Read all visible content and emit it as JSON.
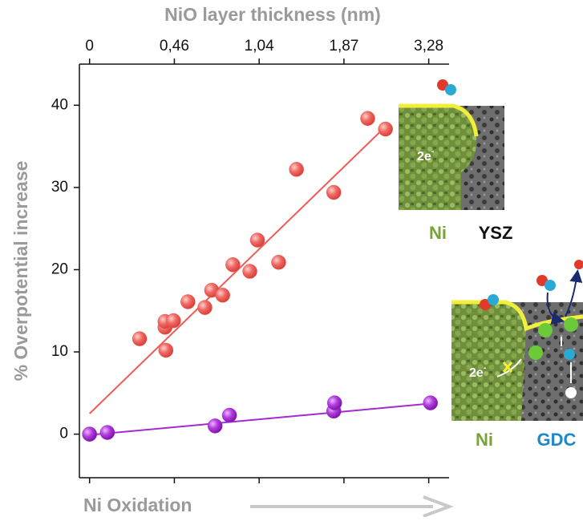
{
  "chart_data": {
    "type": "scatter",
    "top_axis_label": "NiO layer thickness (nm)",
    "ylabel": "% Overpotential increase",
    "xlabel": "Ni Oxidation",
    "xlim": [
      -0.12,
      4.24
    ],
    "xticks": [
      0,
      {
        "value": 1,
        "label": "0,46"
      },
      {
        "value": 2,
        "label": "1,04"
      },
      {
        "value": 3,
        "label": "1,87"
      },
      {
        "value": 4,
        "label": "3,28"
      }
    ],
    "ylim": [
      -5.3,
      45
    ],
    "yticks": [
      0,
      10,
      20,
      30,
      40
    ],
    "grid": false,
    "series": [
      {
        "color": "#f05a55",
        "x": [
          0,
          0.59,
          0.89,
          0.89,
          0.9,
          0.99,
          1.16,
          1.36,
          1.44,
          1.57,
          1.69,
          1.89,
          1.98,
          2.23,
          2.44,
          2.88,
          3.28,
          3.49
        ],
        "values": [
          0,
          11.6,
          13.0,
          13.7,
          10.2,
          13.8,
          16.1,
          15.4,
          17.5,
          16.9,
          20.6,
          19.8,
          23.6,
          20.9,
          32.2,
          29.4,
          38.4,
          37.1
        ],
        "fit": {
          "x": [
            0,
            3.5
          ],
          "values": [
            2.5,
            37.5
          ]
        }
      },
      {
        "color": "#a52ad0",
        "x": [
          0,
          0.21,
          1.48,
          1.65,
          2.88,
          2.89,
          4.02
        ],
        "values": [
          0,
          0.2,
          1.0,
          2.3,
          2.8,
          3.8,
          3.8
        ],
        "fit": {
          "x": [
            0,
            4.0
          ],
          "values": [
            -0.1,
            3.7
          ]
        }
      }
    ]
  },
  "insets": [
    {
      "left": "Ni",
      "right": "YSZ",
      "electron": "2e",
      "charge": "-"
    },
    {
      "left": "Ni",
      "right": "GDC",
      "electron": "2e",
      "charge": "-"
    }
  ]
}
